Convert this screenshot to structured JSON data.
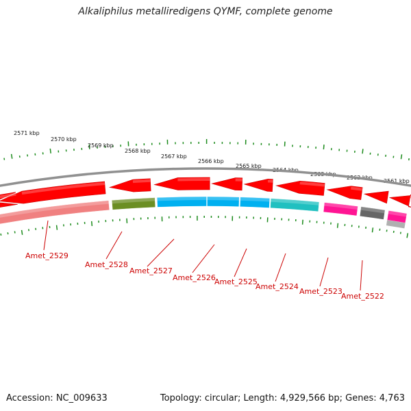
{
  "title": "Alkaliphilus metalliredigens QYMF, complete genome",
  "footer": {
    "accession": "Accession: NC_009633",
    "topology": "Topology: circular; Length: 4,929,566 bp; Genes: 4,763"
  },
  "kbp_ticks": [
    "2571 kbp",
    "2570 kbp",
    "2569 kbp",
    "2568 kbp",
    "2567 kbp",
    "2566 kbp",
    "2565 kbp",
    "2564 kbp",
    "2563 kbp",
    "2562 kbp",
    "2561 kbp"
  ],
  "gene_labels": [
    "Amet_2529",
    "Amet_2528",
    "Amet_2527",
    "Amet_2526",
    "Amet_2525",
    "Amet_2524",
    "Amet_2523",
    "Amet_2522"
  ],
  "colors": {
    "cds_forward": "#ff0000",
    "backbone": "#888888",
    "tick_major": "#1a8a1a",
    "tick_minor": "#1a8a1a",
    "label_text": "#cc0000",
    "cog_lightred": "#f08080",
    "cog_olive": "#6b8e23",
    "cog_skyblue": "#00b0f0",
    "cog_teal": "#20c0c0",
    "cog_pink": "#ff1493",
    "cog_gray": "#666666",
    "cog_lightgray": "#b0b0b0"
  }
}
